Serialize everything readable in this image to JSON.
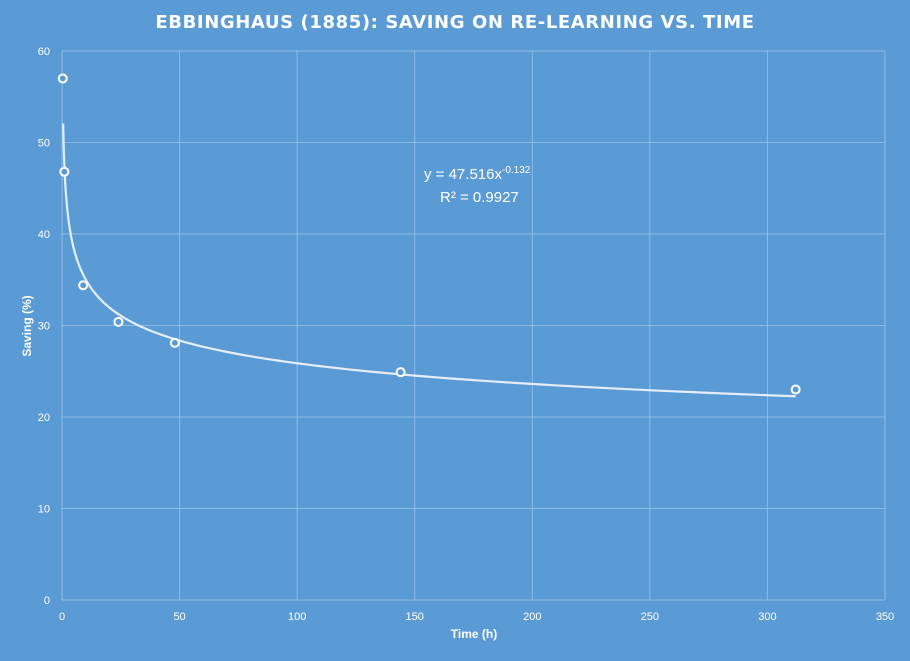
{
  "chart_data": {
    "type": "scatter",
    "title": "EBBINGHAUS (1885): SAVING ON RE-LEARNING VS. TIME",
    "xlabel": "Time (h)",
    "ylabel": "Saving (%)",
    "xlim": [
      0,
      350
    ],
    "ylim": [
      0,
      60
    ],
    "xticks": [
      "0",
      "50",
      "100",
      "150",
      "200",
      "250",
      "300",
      "350"
    ],
    "yticks": [
      "0",
      "10",
      "20",
      "30",
      "40",
      "50",
      "60"
    ],
    "grid": true,
    "legend": "none",
    "points": [
      {
        "x": 0.33,
        "y": 57.0
      },
      {
        "x": 1,
        "y": 46.8
      },
      {
        "x": 9,
        "y": 34.4
      },
      {
        "x": 24,
        "y": 30.4
      },
      {
        "x": 48,
        "y": 28.1
      },
      {
        "x": 144,
        "y": 24.9
      },
      {
        "x": 312,
        "y": 23.0
      }
    ],
    "trendline": {
      "type": "power",
      "a": 47.516,
      "b": -0.132,
      "equation_prefix": "y = 47.516x",
      "equation_exponent": "-0.132",
      "r_squared_text": "R² = 0.9927"
    },
    "colors": {
      "background": "#5b9bd5",
      "text": "#ffffff",
      "trendline": "#e4eefa"
    }
  }
}
